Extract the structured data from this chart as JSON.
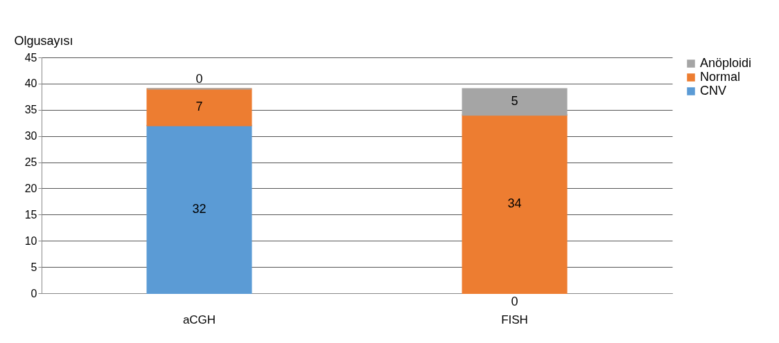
{
  "chart_data": {
    "type": "bar",
    "stacked": true,
    "ylabel": "Olgusayısı",
    "categories": [
      "aCGH",
      "FISH"
    ],
    "series": [
      {
        "name": "CNV",
        "color": "#5b9bd5",
        "values": [
          32,
          0
        ]
      },
      {
        "name": "Normal",
        "color": "#ed7d31",
        "values": [
          7,
          34
        ]
      },
      {
        "name": "Anöploidi",
        "color": "#a5a5a5",
        "values": [
          0,
          5
        ]
      }
    ],
    "ylim": [
      0,
      45
    ],
    "yticks": [
      0,
      5,
      10,
      15,
      20,
      25,
      30,
      35,
      40,
      45
    ],
    "grid": "y",
    "legend": "right",
    "data_labels": true
  }
}
